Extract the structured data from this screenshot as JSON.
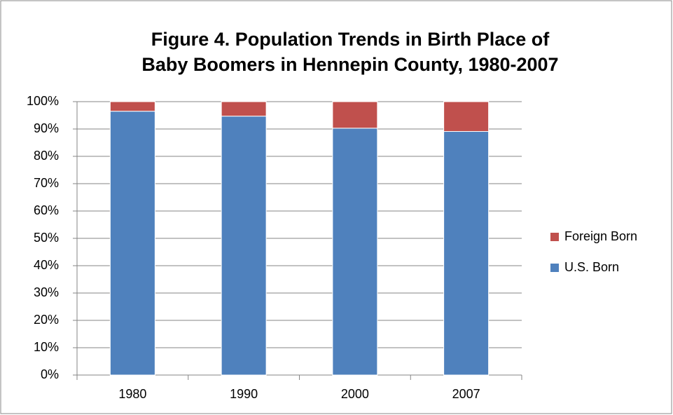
{
  "chart_data": {
    "type": "stacked_bar",
    "title": "Figure 4. Population Trends in Birth Place of Baby Boomers in Hennepin County, 1980-2007",
    "categories": [
      "1980",
      "1990",
      "2000",
      "2007"
    ],
    "series": [
      {
        "name": "U.S. Born",
        "color": "#4f81bd",
        "values": [
          96.5,
          94.7,
          90.3,
          89.1
        ]
      },
      {
        "name": "Foreign Born",
        "color": "#c0504d",
        "values": [
          3.5,
          5.3,
          9.7,
          10.9
        ]
      }
    ],
    "ylim": [
      0,
      100
    ],
    "yticks": [
      {
        "value": 0,
        "label": "0%"
      },
      {
        "value": 10,
        "label": "10%"
      },
      {
        "value": 20,
        "label": "20%"
      },
      {
        "value": 30,
        "label": "30%"
      },
      {
        "value": 40,
        "label": "40%"
      },
      {
        "value": 50,
        "label": "50%"
      },
      {
        "value": 60,
        "label": "60%"
      },
      {
        "value": 70,
        "label": "70%"
      },
      {
        "value": 80,
        "label": "80%"
      },
      {
        "value": 90,
        "label": "90%"
      },
      {
        "value": 100,
        "label": "100%"
      }
    ],
    "grid": true,
    "legend": "right"
  }
}
